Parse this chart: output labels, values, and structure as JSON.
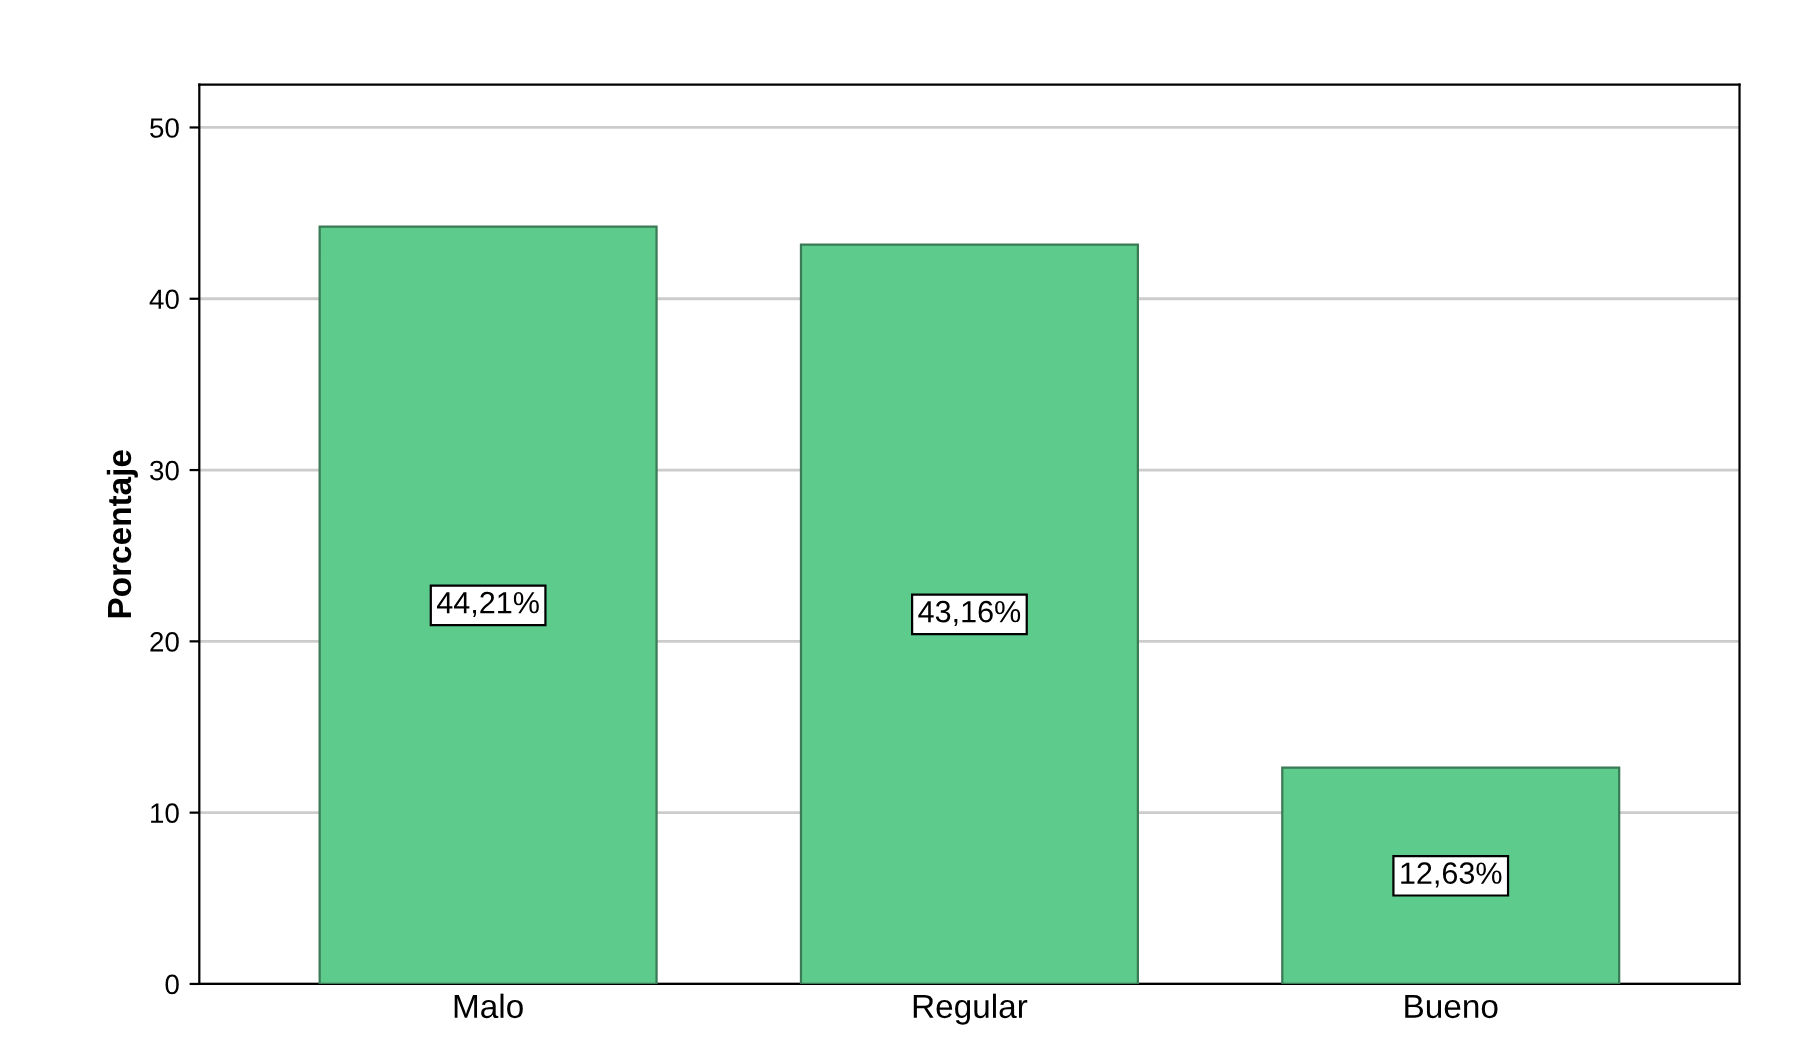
{
  "chart_data": {
    "type": "bar",
    "ylabel": "Porcentaje",
    "categories": [
      "Malo",
      "Regular",
      "Bueno"
    ],
    "values": [
      44.21,
      43.16,
      12.63
    ],
    "value_labels": [
      "44,21%",
      "43,16%",
      "12,63%"
    ],
    "color": "#5dcb8b",
    "ylim": [
      0,
      52.5
    ],
    "yticks": [
      0,
      10,
      20,
      30,
      40,
      50
    ],
    "grid": "y"
  }
}
